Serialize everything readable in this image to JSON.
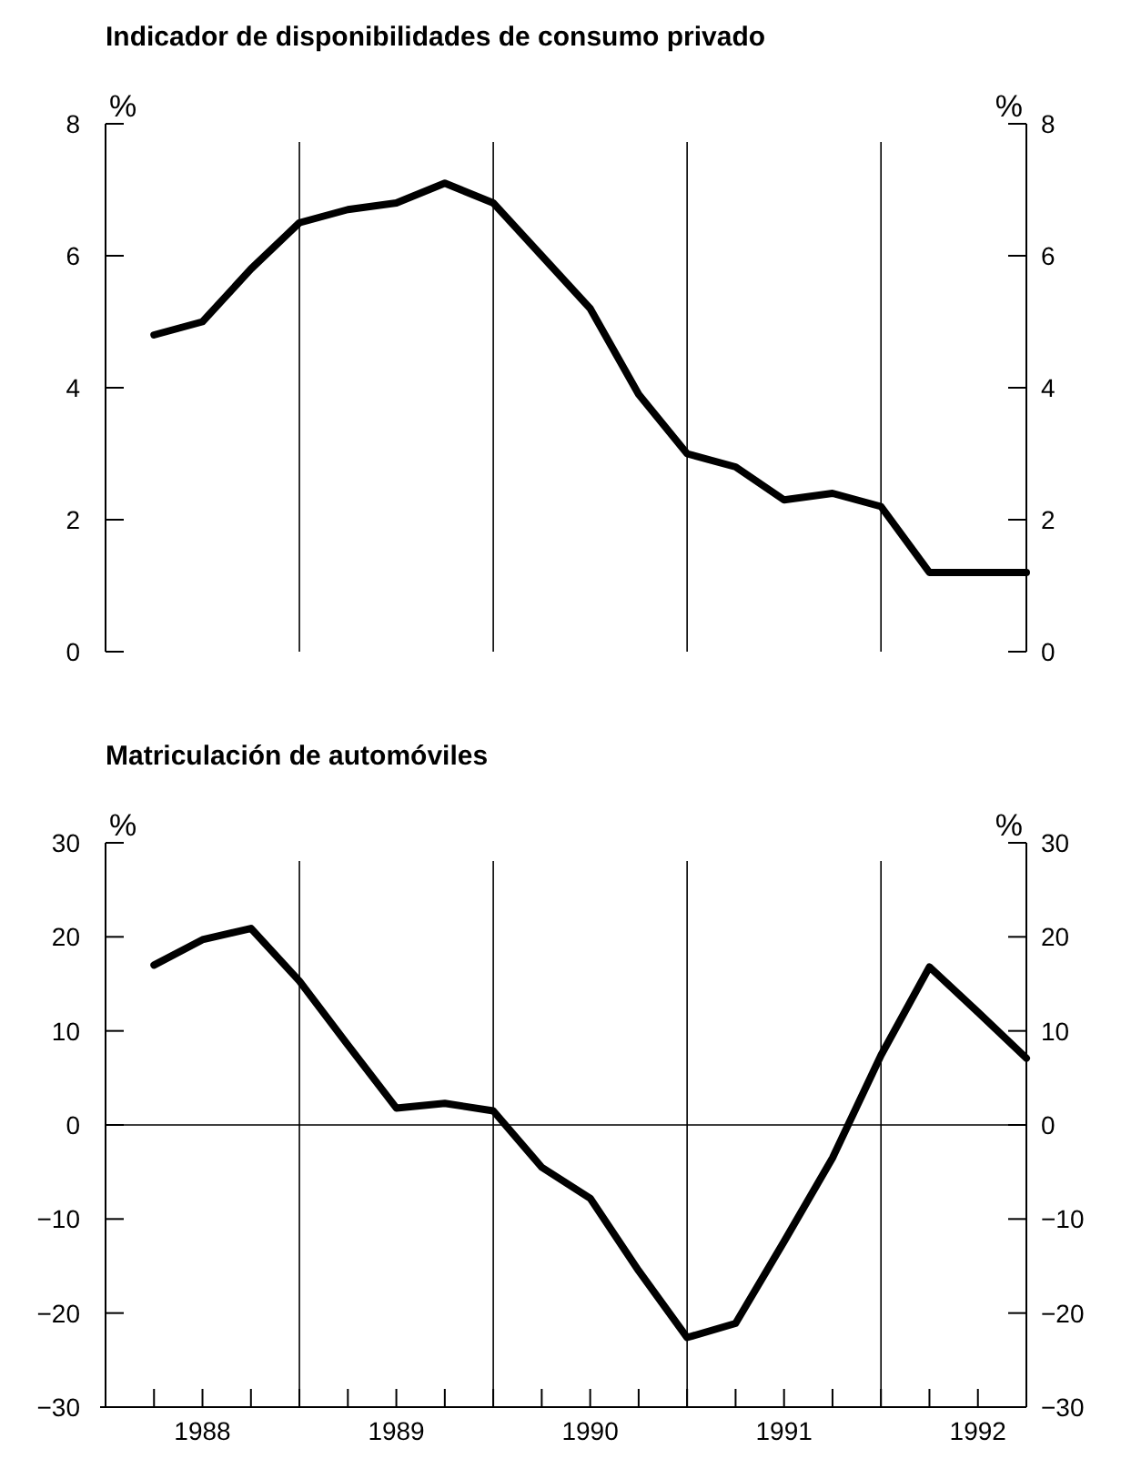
{
  "chart_data": [
    {
      "type": "line",
      "title": "Indicador de disponibilidades de consumo privado",
      "ylabel": "%",
      "y2label": "%",
      "x": [
        1988.25,
        1988.5,
        1988.75,
        1989,
        1989.25,
        1989.5,
        1989.75,
        1990,
        1990.25,
        1990.5,
        1990.75,
        1991,
        1991.25,
        1991.5,
        1991.75,
        1992,
        1992.25,
        1992.5,
        1992.75
      ],
      "series": [
        {
          "color": "#000000",
          "values": [
            4.8,
            5.0,
            5.8,
            6.5,
            6.7,
            6.8,
            7.1,
            6.8,
            6.0,
            5.2,
            3.9,
            3.0,
            2.8,
            2.3,
            2.4,
            2.2,
            1.2,
            1.2,
            1.2
          ]
        }
      ],
      "xlim": [
        1988,
        1992.75
      ],
      "ylim": [
        0,
        8
      ],
      "yticks": [
        0,
        2,
        4,
        6,
        8
      ],
      "y2lim": [
        0,
        8
      ],
      "y2ticks": [
        0,
        2,
        4,
        6,
        8
      ],
      "tick_labels": "y",
      "grid": false,
      "marker": "none",
      "line_style": "solid",
      "ref_lines": [
        {
          "axis": "x",
          "value": 1989,
          "color": "#000000"
        },
        {
          "axis": "x",
          "value": 1990,
          "color": "#000000"
        },
        {
          "axis": "x",
          "value": 1991,
          "color": "#000000"
        },
        {
          "axis": "x",
          "value": 1992,
          "color": "#000000"
        }
      ]
    },
    {
      "type": "line",
      "title": "Matriculación de automóviles",
      "ylabel": "%",
      "y2label": "%",
      "x": [
        1988.25,
        1988.5,
        1988.75,
        1989,
        1989.25,
        1989.5,
        1989.75,
        1990,
        1990.25,
        1990.5,
        1990.75,
        1991,
        1991.25,
        1991.5,
        1991.75,
        1992,
        1992.25,
        1992.5,
        1992.75
      ],
      "series": [
        {
          "color": "#000000",
          "values": [
            17,
            19.7,
            20.9,
            15.3,
            8.5,
            1.8,
            2.3,
            1.5,
            -4.5,
            -7.8,
            -15.5,
            -22.6,
            -21.1,
            -12.4,
            -3.5,
            7.4,
            16.8,
            12,
            7.1
          ]
        }
      ],
      "xlim": [
        1988,
        1992.75
      ],
      "ylim": [
        -30,
        30
      ],
      "yticks": [
        -30,
        -20,
        -10,
        0,
        10,
        20,
        30
      ],
      "y2lim": [
        -30,
        30
      ],
      "y2ticks": [
        -30,
        -20,
        -10,
        0,
        10,
        20,
        30
      ],
      "xticks": [
        {
          "value": 1988.25,
          "label": null
        },
        {
          "value": 1988.5,
          "label": "1988"
        },
        {
          "value": 1988.75,
          "label": null
        },
        {
          "value": 1989,
          "label": null
        },
        {
          "value": 1989.25,
          "label": null
        },
        {
          "value": 1989.5,
          "label": "1989"
        },
        {
          "value": 1989.75,
          "label": null
        },
        {
          "value": 1990,
          "label": null
        },
        {
          "value": 1990.25,
          "label": null
        },
        {
          "value": 1990.5,
          "label": "1990"
        },
        {
          "value": 1990.75,
          "label": null
        },
        {
          "value": 1991,
          "label": null
        },
        {
          "value": 1991.25,
          "label": null
        },
        {
          "value": 1991.5,
          "label": "1991"
        },
        {
          "value": 1991.75,
          "label": null
        },
        {
          "value": 1992,
          "label": null
        },
        {
          "value": 1992.25,
          "label": null
        },
        {
          "value": 1992.5,
          "label": "1992"
        }
      ],
      "grid": false,
      "marker": "none",
      "line_style": "solid",
      "ref_lines": [
        {
          "axis": "y",
          "value": 0,
          "color": "#000000"
        },
        {
          "axis": "x",
          "value": 1989,
          "color": "#000000"
        },
        {
          "axis": "x",
          "value": 1990,
          "color": "#000000"
        },
        {
          "axis": "x",
          "value": 1991,
          "color": "#000000"
        },
        {
          "axis": "x",
          "value": 1992,
          "color": "#000000"
        }
      ]
    }
  ]
}
